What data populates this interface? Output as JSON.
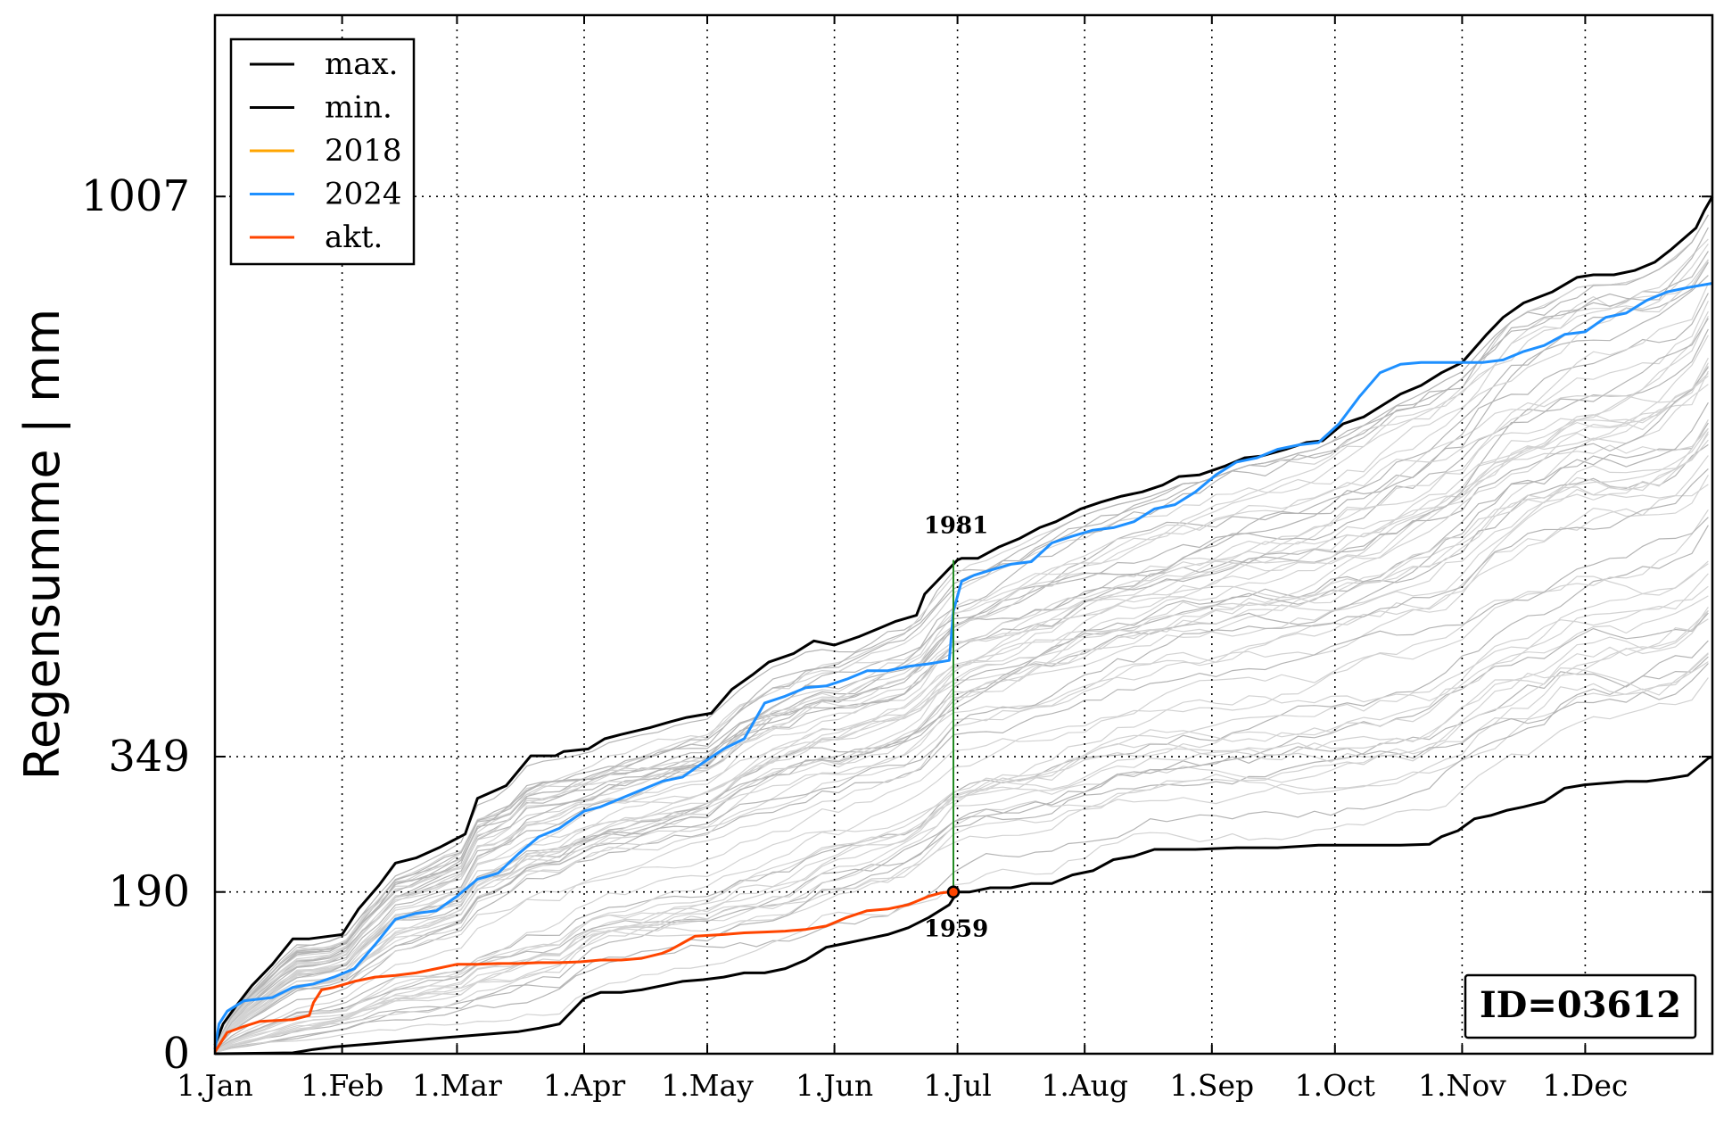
{
  "chart_data": {
    "type": "line",
    "ylabel": "Regensumme | mm",
    "xlabel": "",
    "xlim_doy": [
      1,
      366
    ],
    "ylim": [
      0,
      1220
    ],
    "month_ticks": [
      {
        "label": "1.Jan",
        "doy": 1
      },
      {
        "label": "1.Feb",
        "doy": 32
      },
      {
        "label": "1.Mar",
        "doy": 60
      },
      {
        "label": "1.Apr",
        "doy": 91
      },
      {
        "label": "1.May",
        "doy": 121
      },
      {
        "label": "1.Jun",
        "doy": 152
      },
      {
        "label": "1.Jul",
        "doy": 182
      },
      {
        "label": "1.Aug",
        "doy": 213
      },
      {
        "label": "1.Sep",
        "doy": 244
      },
      {
        "label": "1.Oct",
        "doy": 274
      },
      {
        "label": "1.Nov",
        "doy": 305
      },
      {
        "label": "1.Dec",
        "doy": 335
      }
    ],
    "yticks": [
      0,
      190,
      349,
      1007
    ],
    "grid": true,
    "legend_position": "top-left",
    "legend": [
      {
        "label": "max.",
        "color": "#000000"
      },
      {
        "label": "min.",
        "color": "#000000"
      },
      {
        "label": "2018",
        "color": "#ffa500"
      },
      {
        "label": "2024",
        "color": "#1e90ff"
      },
      {
        "label": "akt.",
        "color": "#ff4500"
      }
    ],
    "series": [
      {
        "name": "max.",
        "color": "#000000",
        "width": 3,
        "x": [
          1,
          3,
          6,
          10,
          15,
          20,
          24,
          32,
          36,
          41,
          45,
          50,
          56,
          62,
          65,
          72,
          78,
          84,
          86,
          92,
          96,
          100,
          107,
          112,
          116,
          122,
          127,
          132,
          136,
          142,
          147,
          152,
          158,
          163,
          167,
          172,
          174,
          177,
          180,
          181,
          182,
          183,
          187,
          192,
          197,
          202,
          206,
          212,
          217,
          222,
          227,
          232,
          236,
          241,
          247,
          252,
          256,
          262,
          267,
          271,
          276,
          281,
          285,
          290,
          295,
          300,
          305,
          311,
          315,
          320,
          327,
          333,
          337,
          342,
          347,
          352,
          356,
          362,
          364,
          366
        ],
        "y": [
          10,
          35,
          55,
          80,
          105,
          135,
          135,
          140,
          170,
          198,
          224,
          230,
          243,
          258,
          300,
          315,
          350,
          350,
          355,
          358,
          370,
          375,
          383,
          390,
          395,
          400,
          428,
          445,
          460,
          470,
          485,
          480,
          490,
          500,
          508,
          515,
          540,
          555,
          570,
          575,
          580,
          582,
          582,
          595,
          605,
          618,
          625,
          640,
          648,
          655,
          660,
          668,
          678,
          680,
          690,
          700,
          702,
          710,
          718,
          720,
          740,
          748,
          760,
          775,
          785,
          800,
          812,
          845,
          865,
          882,
          895,
          912,
          915,
          915,
          920,
          930,
          945,
          970,
          990,
          1007
        ]
      },
      {
        "name": "min.",
        "color": "#000000",
        "width": 3,
        "x": [
          1,
          20,
          25,
          30,
          35,
          40,
          45,
          50,
          55,
          60,
          65,
          70,
          75,
          80,
          85,
          88,
          91,
          95,
          100,
          105,
          110,
          115,
          120,
          125,
          130,
          135,
          140,
          145,
          150,
          155,
          160,
          165,
          170,
          175,
          180,
          182,
          185,
          190,
          195,
          200,
          205,
          210,
          215,
          220,
          225,
          230,
          240,
          250,
          260,
          270,
          280,
          290,
          297,
          300,
          304,
          308,
          312,
          316,
          320,
          325,
          330,
          335,
          340,
          345,
          350,
          355,
          360,
          365,
          366
        ],
        "y": [
          0,
          1,
          5,
          8,
          10,
          12,
          14,
          16,
          18,
          20,
          22,
          24,
          26,
          30,
          35,
          50,
          65,
          72,
          72,
          75,
          80,
          85,
          87,
          90,
          95,
          95,
          100,
          110,
          125,
          130,
          135,
          140,
          148,
          160,
          175,
          190,
          190,
          195,
          195,
          200,
          200,
          210,
          215,
          228,
          232,
          240,
          240,
          242,
          242,
          245,
          245,
          245,
          246,
          255,
          262,
          276,
          280,
          286,
          290,
          296,
          312,
          316,
          318,
          320,
          320,
          323,
          327,
          347,
          349
        ]
      },
      {
        "name": "2024",
        "color": "#1e90ff",
        "width": 3,
        "x": [
          1,
          2,
          4,
          8,
          15,
          20,
          25,
          30,
          35,
          40,
          45,
          50,
          55,
          60,
          65,
          70,
          75,
          80,
          85,
          88,
          91,
          95,
          100,
          110,
          115,
          120,
          125,
          130,
          135,
          140,
          145,
          150,
          155,
          160,
          165,
          170,
          175,
          180,
          181,
          183,
          186,
          190,
          195,
          200,
          205,
          210,
          215,
          220,
          225,
          230,
          235,
          240,
          245,
          250,
          255,
          260,
          265,
          270,
          275,
          280,
          285,
          290,
          295,
          300,
          305,
          310,
          315,
          320,
          325,
          330,
          335,
          340,
          345,
          350,
          355,
          360,
          366
        ],
        "y": [
          5,
          35,
          50,
          62,
          66,
          78,
          82,
          90,
          100,
          128,
          158,
          165,
          168,
          185,
          205,
          212,
          235,
          255,
          265,
          275,
          285,
          290,
          300,
          320,
          325,
          342,
          358,
          370,
          412,
          420,
          430,
          432,
          440,
          450,
          450,
          455,
          458,
          462,
          520,
          555,
          562,
          568,
          575,
          578,
          600,
          608,
          615,
          618,
          625,
          640,
          645,
          660,
          680,
          695,
          700,
          710,
          715,
          718,
          740,
          772,
          800,
          810,
          812,
          812,
          812,
          812,
          815,
          825,
          832,
          845,
          848,
          865,
          870,
          885,
          895,
          900,
          905
        ]
      },
      {
        "name": "akt.",
        "color": "#ff4500",
        "width": 3,
        "x": [
          1,
          4,
          8,
          12,
          20,
          24,
          25,
          27,
          30,
          35,
          40,
          45,
          50,
          55,
          60,
          65,
          70,
          75,
          80,
          85,
          90,
          95,
          100,
          105,
          110,
          112,
          115,
          118,
          125,
          130,
          135,
          140,
          145,
          150,
          155,
          160,
          165,
          170,
          175,
          178,
          180,
          181
        ],
        "y": [
          2,
          25,
          32,
          38,
          40,
          45,
          60,
          75,
          78,
          85,
          90,
          92,
          95,
          100,
          105,
          105,
          106,
          106,
          107,
          107,
          108,
          110,
          110,
          112,
          118,
          122,
          130,
          138,
          140,
          142,
          143,
          144,
          146,
          150,
          160,
          168,
          170,
          175,
          185,
          189,
          190,
          190
        ]
      }
    ],
    "highlight_2018": {
      "label": "2018",
      "color": "#ffa500"
    },
    "marker": {
      "x": 181,
      "y": 190
    },
    "vertical_line": {
      "x": 181,
      "y_from": 190,
      "y_to": 580,
      "color": "#228b22"
    },
    "annotations": [
      {
        "text": "1981",
        "x": 181,
        "y": 580,
        "placement": "above"
      },
      {
        "text": "1959",
        "x": 181,
        "y": 190,
        "placement": "below"
      }
    ],
    "station_id_label": "ID=03612",
    "background_years_color": "#c8c8c8"
  }
}
